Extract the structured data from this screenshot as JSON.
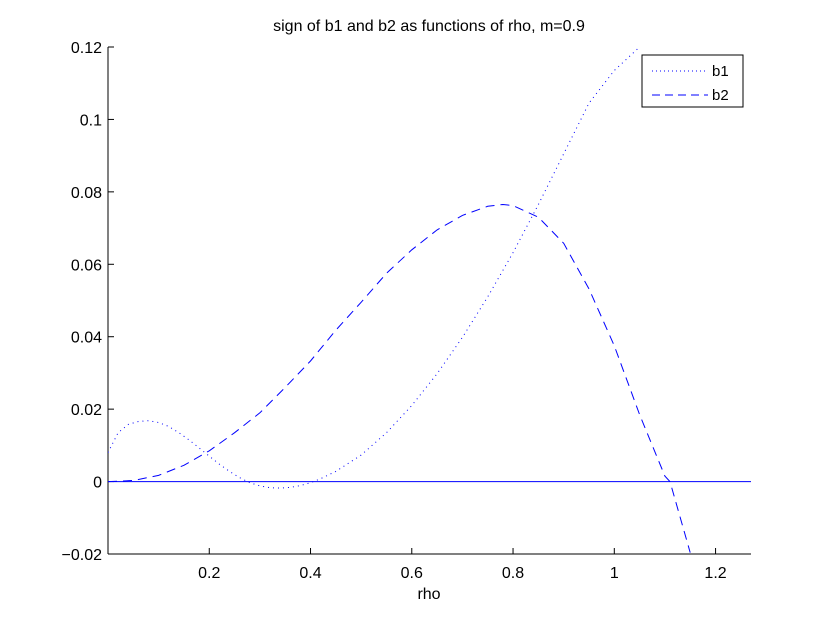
{
  "chart_data": {
    "type": "line",
    "title": "sign of b1 and b2 as functions of rho, m=0.9",
    "xlabel": "rho",
    "ylabel": "",
    "xlim": [
      0.0,
      1.27
    ],
    "ylim": [
      -0.02,
      0.12
    ],
    "xticks": [
      0.2,
      0.4,
      0.6,
      0.8,
      1.0,
      1.2
    ],
    "xtick_labels": [
      "0.2",
      "0.4",
      "0.6",
      "0.8",
      "1",
      "1.2"
    ],
    "yticks": [
      -0.02,
      0.0,
      0.02,
      0.04,
      0.06,
      0.08,
      0.1,
      0.12
    ],
    "ytick_labels": [
      "−0.02",
      "0",
      "0.02",
      "0.04",
      "0.06",
      "0.08",
      "0.1",
      "0.12"
    ],
    "grid": false,
    "legend_position": "top-right",
    "reference_line": {
      "y": 0,
      "color": "#0000ff"
    },
    "series": [
      {
        "name": "b1",
        "style": "dotted",
        "color": "#0000ff",
        "x": [
          0.0,
          0.02,
          0.04,
          0.06,
          0.08,
          0.1,
          0.12,
          0.14,
          0.16,
          0.18,
          0.2,
          0.22,
          0.24,
          0.26,
          0.28,
          0.3,
          0.32,
          0.34,
          0.36,
          0.38,
          0.4,
          0.42,
          0.45,
          0.5,
          0.55,
          0.6,
          0.65,
          0.7,
          0.75,
          0.8,
          0.85,
          0.9,
          0.95,
          1.0,
          1.05
        ],
        "y": [
          0.008,
          0.0135,
          0.0158,
          0.0166,
          0.0168,
          0.0163,
          0.0152,
          0.0135,
          0.0115,
          0.0093,
          0.007,
          0.0048,
          0.0028,
          0.0011,
          -0.0003,
          -0.0012,
          -0.0017,
          -0.0018,
          -0.0016,
          -0.0011,
          -0.0003,
          0.0008,
          0.0028,
          0.0073,
          0.0135,
          0.021,
          0.0298,
          0.0398,
          0.051,
          0.0632,
          0.0765,
          0.0905,
          0.1045,
          0.1135,
          0.12
        ]
      },
      {
        "name": "b2",
        "style": "dashed",
        "color": "#0000ff",
        "x": [
          0.0,
          0.05,
          0.1,
          0.15,
          0.2,
          0.25,
          0.3,
          0.35,
          0.4,
          0.45,
          0.5,
          0.55,
          0.6,
          0.65,
          0.7,
          0.75,
          0.78,
          0.8,
          0.85,
          0.9,
          0.95,
          1.0,
          1.05,
          1.1,
          1.11,
          1.13,
          1.15
        ],
        "y": [
          0.0,
          0.0003,
          0.0017,
          0.0045,
          0.0085,
          0.0135,
          0.019,
          0.026,
          0.0333,
          0.0418,
          0.0495,
          0.0575,
          0.064,
          0.0695,
          0.0735,
          0.076,
          0.0765,
          0.0762,
          0.073,
          0.0658,
          0.0532,
          0.0375,
          0.0185,
          0.0015,
          0.0,
          -0.0098,
          -0.0196
        ]
      }
    ]
  }
}
